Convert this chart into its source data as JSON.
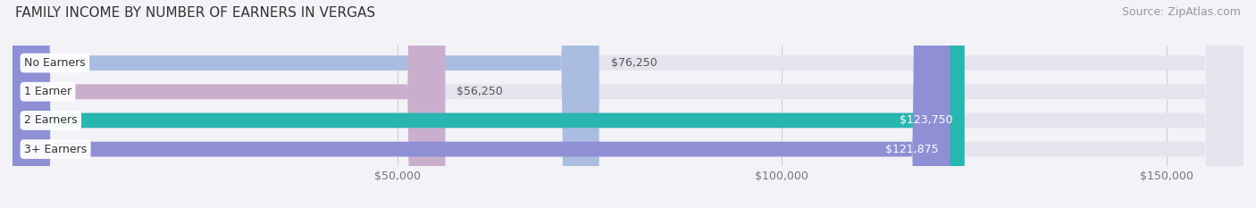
{
  "title": "FAMILY INCOME BY NUMBER OF EARNERS IN VERGAS",
  "source": "Source: ZipAtlas.com",
  "categories": [
    "No Earners",
    "1 Earner",
    "2 Earners",
    "3+ Earners"
  ],
  "values": [
    76250,
    56250,
    123750,
    121875
  ],
  "bar_colors": [
    "#aabde0",
    "#c9aece",
    "#29b5b0",
    "#8e8fd4"
  ],
  "label_colors": [
    "#555555",
    "#555555",
    "#ffffff",
    "#ffffff"
  ],
  "x_ticks": [
    50000,
    100000,
    150000
  ],
  "x_tick_labels": [
    "$50,000",
    "$100,000",
    "$150,000"
  ],
  "x_min": 0,
  "x_max": 160000,
  "background_color": "#f2f2f7",
  "bar_background": "#e4e4ee",
  "title_fontsize": 11,
  "source_fontsize": 9,
  "label_fontsize": 9,
  "category_fontsize": 9,
  "tick_fontsize": 9
}
